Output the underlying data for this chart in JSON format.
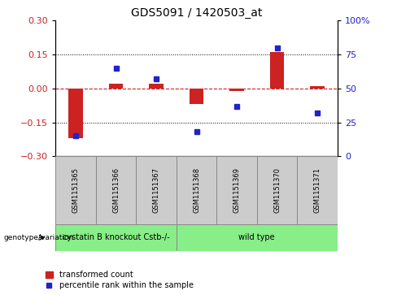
{
  "title": "GDS5091 / 1420503_at",
  "samples": [
    "GSM1151365",
    "GSM1151366",
    "GSM1151367",
    "GSM1151368",
    "GSM1151369",
    "GSM1151370",
    "GSM1151371"
  ],
  "transformed_count": [
    -0.22,
    0.02,
    0.02,
    -0.07,
    -0.01,
    0.16,
    0.01
  ],
  "percentile_rank": [
    15,
    65,
    57,
    18,
    37,
    80,
    32
  ],
  "bar_color": "#cc2222",
  "dot_color": "#2222cc",
  "ylim_left": [
    -0.3,
    0.3
  ],
  "ylim_right": [
    0,
    100
  ],
  "yticks_left": [
    -0.3,
    -0.15,
    0.0,
    0.15,
    0.3
  ],
  "yticks_right": [
    0,
    25,
    50,
    75,
    100
  ],
  "dotted_lines": [
    -0.15,
    0.15
  ],
  "group1_label": "cystatin B knockout Cstb-/-",
  "group1_count": 3,
  "group2_label": "wild type",
  "group2_count": 4,
  "group_row_label": "genotype/variation",
  "legend_bar_label": "transformed count",
  "legend_dot_label": "percentile rank within the sample",
  "bar_width": 0.35,
  "title_fontsize": 10,
  "tick_fontsize": 8,
  "sample_fontsize": 6,
  "group_fontsize": 7,
  "legend_fontsize": 7
}
